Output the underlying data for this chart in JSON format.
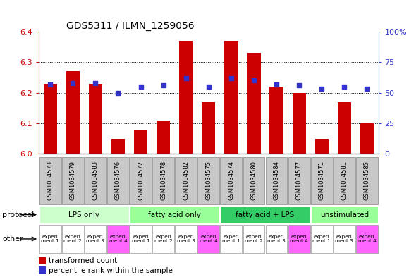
{
  "title": "GDS5311 / ILMN_1259056",
  "samples": [
    "GSM1034573",
    "GSM1034579",
    "GSM1034583",
    "GSM1034576",
    "GSM1034572",
    "GSM1034578",
    "GSM1034582",
    "GSM1034575",
    "GSM1034574",
    "GSM1034580",
    "GSM1034584",
    "GSM1034577",
    "GSM1034571",
    "GSM1034581",
    "GSM1034585"
  ],
  "transformed_count": [
    6.23,
    6.27,
    6.23,
    6.05,
    6.08,
    6.11,
    6.37,
    6.17,
    6.37,
    6.33,
    6.22,
    6.2,
    6.05,
    6.17,
    6.1
  ],
  "percentile_rank": [
    57,
    58,
    58,
    50,
    55,
    56,
    62,
    55,
    62,
    60,
    57,
    56,
    53,
    55,
    53
  ],
  "ylim_left": [
    6.0,
    6.4
  ],
  "ylim_right": [
    0,
    100
  ],
  "yticks_left": [
    6.0,
    6.1,
    6.2,
    6.3,
    6.4
  ],
  "yticks_right": [
    0,
    25,
    50,
    75,
    100
  ],
  "ytick_labels_right": [
    "0",
    "25",
    "50",
    "75",
    "100%"
  ],
  "bar_color": "#cc0000",
  "dot_color": "#3333cc",
  "bg_color": "#ffffff",
  "plot_bg": "#ffffff",
  "protocol_groups": [
    {
      "label": "LPS only",
      "start": 0,
      "end": 4,
      "color": "#ccffcc"
    },
    {
      "label": "fatty acid only",
      "start": 4,
      "end": 8,
      "color": "#99ff99"
    },
    {
      "label": "fatty acid + LPS",
      "start": 8,
      "end": 12,
      "color": "#33cc66"
    },
    {
      "label": "unstimulated",
      "start": 12,
      "end": 15,
      "color": "#99ff99"
    }
  ],
  "experiment_labels": [
    "experi\nment 1",
    "experi\nment 2",
    "experi\nment 3",
    "experi\nment 4",
    "experi\nment 1",
    "experi\nment 2",
    "experi\nment 3",
    "experi\nment 4",
    "experi\nment 1",
    "experi\nment 2",
    "experi\nment 3",
    "experi\nment 4",
    "experi\nment 1",
    "experi\nment 3",
    "experi\nment 4"
  ],
  "experiment_colors": [
    "#ffffff",
    "#ffffff",
    "#ffffff",
    "#ff66ff",
    "#ffffff",
    "#ffffff",
    "#ffffff",
    "#ff66ff",
    "#ffffff",
    "#ffffff",
    "#ffffff",
    "#ff66ff",
    "#ffffff",
    "#ffffff",
    "#ff66ff"
  ],
  "protocol_label": "protocol",
  "other_label": "other",
  "legend_items": [
    {
      "color": "#cc0000",
      "label": "transformed count"
    },
    {
      "color": "#3333cc",
      "label": "percentile rank within the sample"
    }
  ],
  "sample_box_color": "#c8c8c8",
  "sample_box_edge": "#888888"
}
